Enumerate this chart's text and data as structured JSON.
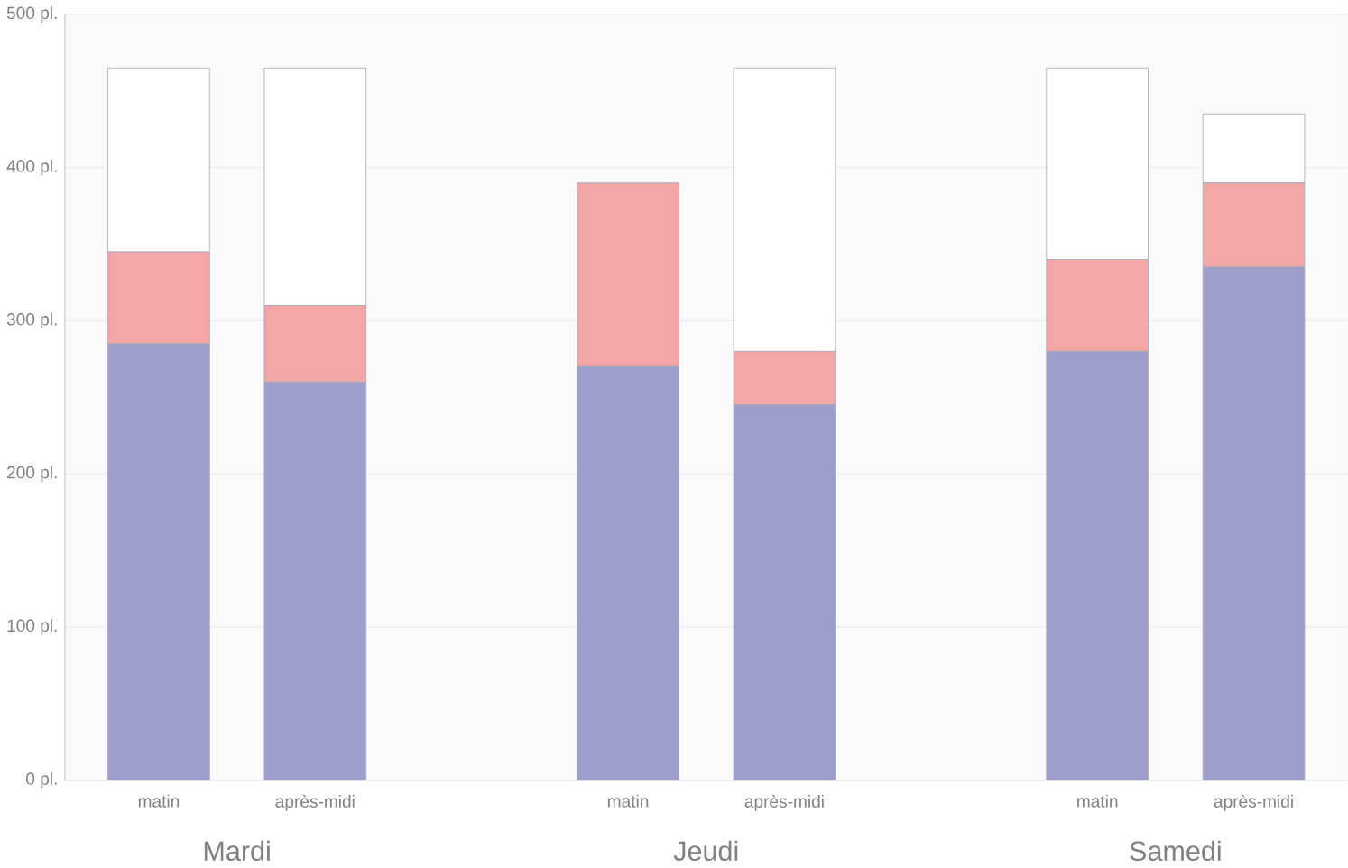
{
  "chart_data": {
    "type": "bar",
    "stacked": true,
    "categories": [
      "matin",
      "après-midi",
      null,
      "matin",
      "après-midi",
      null,
      "matin",
      "après-midi"
    ],
    "series": [
      {
        "color": "#9c9fcc",
        "values": [
          285,
          260,
          null,
          270,
          245,
          null,
          280,
          335
        ]
      },
      {
        "color": "#f2a6a6",
        "values": [
          60,
          50,
          null,
          120,
          35,
          null,
          60,
          55
        ]
      },
      {
        "color": "#ffffff",
        "values": [
          120,
          155,
          null,
          0,
          185,
          null,
          125,
          45
        ]
      }
    ],
    "ylim": [
      0,
      500
    ],
    "yticks": [
      {
        "value": 0,
        "label": "0 pl."
      },
      {
        "value": 100,
        "label": "100 pl."
      },
      {
        "value": 200,
        "label": "200 pl."
      },
      {
        "value": 300,
        "label": "300 pl."
      },
      {
        "value": 400,
        "label": "400 pl."
      },
      {
        "value": 500,
        "label": "500 pl."
      }
    ],
    "grid": "y",
    "annotations": [
      "Mardi",
      "Jeudi",
      "Samedi"
    ]
  }
}
